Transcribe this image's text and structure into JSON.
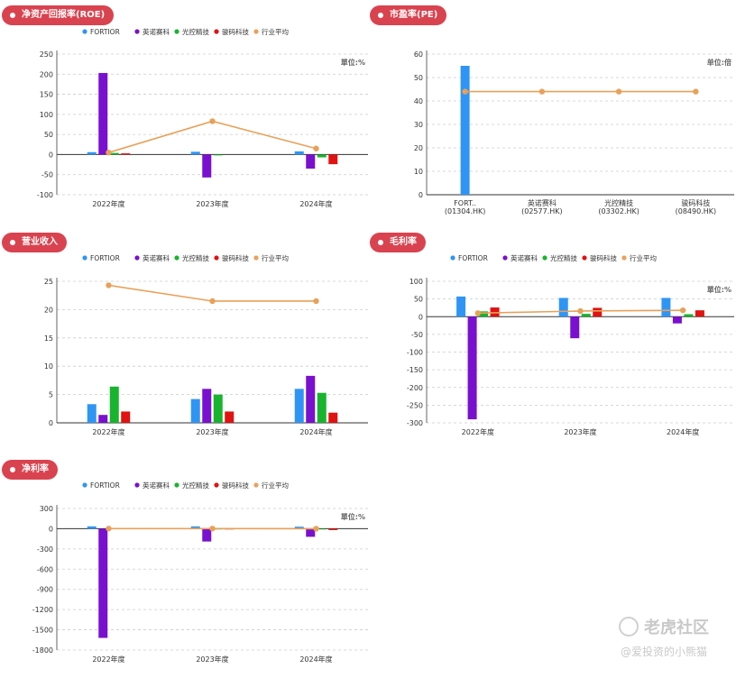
{
  "colors": {
    "pill": "#d9434f",
    "grid": "#cccccc",
    "axis": "#333333"
  },
  "legend_series": [
    {
      "name": "FORTIOR",
      "color": "#2f95f5",
      "kind": "bar"
    },
    {
      "name": "英诺赛科",
      "color": "#7a10cf",
      "kind": "bar"
    },
    {
      "name": "光控精技",
      "color": "#18b42e",
      "kind": "bar"
    },
    {
      "name": "骏码科技",
      "color": "#e01212",
      "kind": "bar"
    },
    {
      "name": "行业平均",
      "color": "#e8a159",
      "kind": "line"
    }
  ],
  "charts": [
    {
      "title": "净资产回报率(ROE)",
      "unit": "單位:%"
    },
    {
      "title": "市盈率(PE)",
      "unit": "单位:倍"
    },
    {
      "title": "营业收入",
      "unit": ""
    },
    {
      "title": "毛利率",
      "unit": "單位:%"
    },
    {
      "title": "净利率",
      "unit": "單位:%"
    }
  ],
  "watermark": {
    "brand": "老虎社区",
    "author": "@爱投资的小熊猫"
  },
  "chart_data": [
    {
      "type": "bar",
      "title": "净资产回报率(ROE)",
      "unit": "單位:%",
      "categories": [
        "2022年度",
        "2023年度",
        "2024年度"
      ],
      "yticks": [
        250,
        200,
        150,
        100,
        50,
        0,
        -50,
        -100
      ],
      "ylim": [
        -100,
        250
      ],
      "series": [
        {
          "name": "FORTIOR",
          "values": [
            6,
            7,
            8
          ]
        },
        {
          "name": "英诺赛科",
          "values": [
            203,
            -57,
            -35
          ]
        },
        {
          "name": "光控精技",
          "values": [
            4,
            -2,
            -7
          ]
        },
        {
          "name": "骏码科技",
          "values": [
            3,
            0,
            -24
          ]
        }
      ],
      "line": {
        "name": "行业平均",
        "values": [
          5,
          83,
          15
        ]
      },
      "legend": "top",
      "grid": true
    },
    {
      "type": "bar",
      "title": "市盈率(PE)",
      "unit": "单位:倍",
      "categories": [
        [
          "FORT..",
          "(01304.HK)"
        ],
        [
          "英诺赛科",
          "(02577.HK)"
        ],
        [
          "光控精技",
          "(03302.HK)"
        ],
        [
          "骏码科技",
          "(08490.HK)"
        ]
      ],
      "yticks": [
        60,
        50,
        40,
        30,
        20,
        10,
        0
      ],
      "ylim": [
        0,
        60
      ],
      "series": [
        {
          "name": "市盈率",
          "values": [
            55,
            0,
            0,
            0
          ]
        }
      ],
      "line": {
        "name": "行业平均",
        "values": [
          44,
          44,
          44,
          44
        ]
      },
      "legend": "none",
      "grid": true
    },
    {
      "type": "bar",
      "title": "营业收入",
      "unit": "",
      "categories": [
        "2022年度",
        "2023年度",
        "2024年度"
      ],
      "yticks": [
        25,
        20,
        15,
        10,
        5,
        0
      ],
      "ylim": [
        0,
        25
      ],
      "series": [
        {
          "name": "FORTIOR",
          "values": [
            3.3,
            4.2,
            6.0
          ]
        },
        {
          "name": "英诺赛科",
          "values": [
            1.4,
            6.0,
            8.3
          ]
        },
        {
          "name": "光控精技",
          "values": [
            6.4,
            5.0,
            5.3
          ]
        },
        {
          "name": "骏码科技",
          "values": [
            2.0,
            2.0,
            1.8
          ]
        }
      ],
      "line": {
        "name": "行业平均",
        "values": [
          24.3,
          21.5,
          21.5
        ]
      },
      "legend": "top",
      "grid": true
    },
    {
      "type": "bar",
      "title": "毛利率",
      "unit": "單位:%",
      "categories": [
        "2022年度",
        "2023年度",
        "2024年度"
      ],
      "yticks": [
        100,
        50,
        0,
        -50,
        -100,
        -150,
        -200,
        -250,
        -300
      ],
      "ylim": [
        -300,
        100
      ],
      "series": [
        {
          "name": "FORTIOR",
          "values": [
            57,
            53,
            53
          ]
        },
        {
          "name": "英诺赛科",
          "values": [
            -290,
            -61,
            -19
          ]
        },
        {
          "name": "光控精技",
          "values": [
            15,
            8,
            7
          ]
        },
        {
          "name": "骏码科技",
          "values": [
            26,
            25,
            18
          ]
        }
      ],
      "line": {
        "name": "行业平均",
        "values": [
          10,
          16,
          18
        ]
      },
      "legend": "top",
      "grid": true
    },
    {
      "type": "bar",
      "title": "净利率",
      "unit": "單位:%",
      "categories": [
        "2022年度",
        "2023年度",
        "2024年度"
      ],
      "yticks": [
        300,
        0,
        -300,
        -600,
        -900,
        -1200,
        -1500,
        -1800
      ],
      "ylim": [
        -1800,
        300
      ],
      "series": [
        {
          "name": "FORTIOR",
          "values": [
            35,
            35,
            30
          ]
        },
        {
          "name": "英诺赛科",
          "values": [
            -1620,
            -190,
            -120
          ]
        },
        {
          "name": "光控精技",
          "values": [
            5,
            -5,
            -8
          ]
        },
        {
          "name": "骏码科技",
          "values": [
            0,
            -4,
            -20
          ]
        }
      ],
      "line": {
        "name": "行业平均",
        "values": [
          2,
          2,
          0
        ]
      },
      "legend": "top",
      "grid": true
    }
  ]
}
